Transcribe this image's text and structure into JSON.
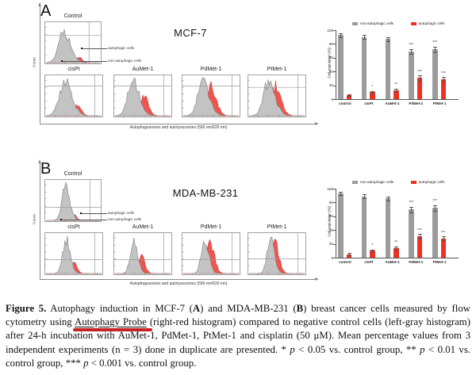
{
  "figure": {
    "panels": [
      {
        "label": "A",
        "cell_line": "MCF-7",
        "count_label": "Count",
        "x_axis_label": "Autophagosomes and autolysosomes (590 nm/620 nm)",
        "annotations": [
          "autophagic cells",
          "non-autophagic cells"
        ],
        "histograms": [
          {
            "title": "Control",
            "gray": {
              "c": 0.33,
              "s": 0.095,
              "h": 0.92
            },
            "red": {
              "c": 0.6,
              "s": 0.05,
              "h": 0.15
            },
            "hline": 0.33,
            "vline": 0.78
          },
          {
            "title": "cisPt",
            "gray": {
              "c": 0.34,
              "s": 0.1,
              "h": 0.94
            },
            "red": {
              "c": 0.56,
              "s": 0.055,
              "h": 0.3
            },
            "hline": 0.27,
            "vline": 0.86
          },
          {
            "title": "AuMet-1",
            "gray": {
              "c": 0.32,
              "s": 0.09,
              "h": 0.94
            },
            "red": {
              "c": 0.52,
              "s": 0.06,
              "h": 0.55
            },
            "hline": 0.27,
            "vline": 0.86
          },
          {
            "title": "PdMet-1",
            "gray": {
              "c": 0.35,
              "s": 0.09,
              "h": 0.94
            },
            "red": {
              "c": 0.49,
              "s": 0.075,
              "h": 0.86
            },
            "hline": 0.27,
            "vline": 0.86
          },
          {
            "title": "PtMet-1",
            "gray": {
              "c": 0.35,
              "s": 0.09,
              "h": 0.94
            },
            "red": {
              "c": 0.48,
              "s": 0.075,
              "h": 0.82
            },
            "hline": 0.3,
            "vline": 0.86
          }
        ]
      },
      {
        "label": "B",
        "cell_line": "MDA-MB-231",
        "count_label": "Count",
        "x_axis_label": "Autophagosomes and autolysosomes (590 nm/620 nm)",
        "annotations": [
          "autophagic cells",
          "non-autophagic cells"
        ],
        "histograms": [
          {
            "title": "Control",
            "gray": {
              "c": 0.36,
              "s": 0.065,
              "h": 0.95
            },
            "red": {
              "c": 0.52,
              "s": 0.04,
              "h": 0.15
            },
            "hline": 0.66,
            "vline": 0.8
          },
          {
            "title": "cisPt",
            "gray": {
              "c": 0.36,
              "s": 0.06,
              "h": 0.95
            },
            "red": {
              "c": 0.5,
              "s": 0.045,
              "h": 0.3
            },
            "hline": 0.64,
            "vline": 0.86
          },
          {
            "title": "AuMet-1",
            "gray": {
              "c": 0.33,
              "s": 0.058,
              "h": 0.92
            },
            "red": {
              "c": 0.47,
              "s": 0.05,
              "h": 0.48
            },
            "hline": 0.64,
            "vline": 0.86
          },
          {
            "title": "PdMet-1",
            "gray": {
              "c": 0.38,
              "s": 0.058,
              "h": 0.95
            },
            "red": {
              "c": 0.48,
              "s": 0.06,
              "h": 0.88
            },
            "hline": 0.64,
            "vline": 0.86
          },
          {
            "title": "PtMet-1",
            "gray": {
              "c": 0.38,
              "s": 0.058,
              "h": 0.95
            },
            "red": {
              "c": 0.47,
              "s": 0.055,
              "h": 0.85
            },
            "hline": 0.62,
            "vline": 0.86
          }
        ]
      }
    ]
  },
  "chart_data": [
    {
      "type": "bar",
      "panel": "A",
      "title": "",
      "categories": [
        "control",
        "cisPt",
        "AuMet-1",
        "PdMet-1",
        "PtMet-1"
      ],
      "series": [
        {
          "name": "non-autophagic cells",
          "color": "#9c9c9c",
          "values": [
            93,
            90,
            87,
            69,
            72
          ],
          "errors": [
            3,
            3,
            3,
            4,
            4
          ],
          "sig": [
            "",
            "",
            "",
            "***",
            "***"
          ]
        },
        {
          "name": "autophagic cells",
          "color": "#ee3124",
          "values": [
            6,
            10,
            13,
            31,
            29
          ],
          "errors": [
            1.5,
            2,
            2.5,
            3,
            3
          ],
          "sig": [
            "",
            "*",
            "**",
            "***",
            "***"
          ]
        }
      ],
      "ylabel": "Cell population [%]",
      "ylim": [
        0,
        100
      ],
      "yticks": [
        0,
        20,
        40,
        60,
        80,
        100
      ],
      "grid": false,
      "legend_position": "top"
    },
    {
      "type": "bar",
      "panel": "B",
      "title": "",
      "categories": [
        "control",
        "cisPt",
        "AuMet-1",
        "PdMet-1",
        "PtMet-1"
      ],
      "series": [
        {
          "name": "non-autophagic cells",
          "color": "#9c9c9c",
          "values": [
            93,
            89,
            86,
            70,
            72
          ],
          "errors": [
            2.5,
            3,
            3,
            4,
            4
          ],
          "sig": [
            "",
            "",
            "",
            "***",
            "***"
          ]
        },
        {
          "name": "autophagic cells",
          "color": "#ee3124",
          "values": [
            5,
            10,
            14,
            31,
            28
          ],
          "errors": [
            1.5,
            2,
            2.5,
            3,
            3
          ],
          "sig": [
            "",
            "*",
            "**",
            "***",
            "***"
          ]
        }
      ],
      "ylabel": "Cell population [%]",
      "ylim": [
        0,
        100
      ],
      "yticks": [
        0,
        20,
        40,
        60,
        80,
        100
      ],
      "grid": false,
      "legend_position": "top"
    }
  ],
  "caption": {
    "segments": [
      {
        "t": "Figure 5.",
        "b": true
      },
      {
        "t": " Autophagy induction in MCF-7 ("
      },
      {
        "t": "A",
        "b": true
      },
      {
        "t": ") and MDA-MB-231 ("
      },
      {
        "t": "B",
        "b": true
      },
      {
        "t": ") breast cancer cells measured by flow cytometry using "
      },
      {
        "t": "Autophagy Probe",
        "r": true
      },
      {
        "t": " (right-red histogram) compared to negative control cells (left-gray histogram) after 24-h incubation with AuMet-1, PdMet-1, PtMet-1 and cisplatin (50 μM). Mean percentage values from 3 independent experiments (n = 3) done in duplicate are presented. * "
      },
      {
        "t": "p",
        "i": true
      },
      {
        "t": " < 0.05 vs. control group, ** "
      },
      {
        "t": "p",
        "i": true
      },
      {
        "t": " < 0.01 vs. control group, *** "
      },
      {
        "t": "p",
        "i": true
      },
      {
        "t": " < 0.001 vs. control group."
      }
    ]
  }
}
